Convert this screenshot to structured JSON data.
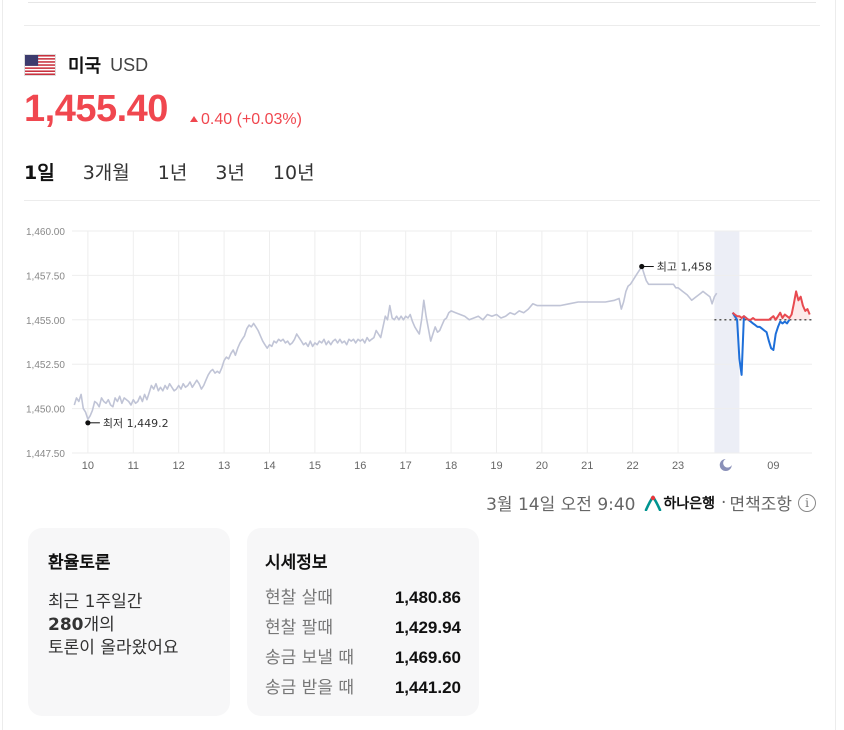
{
  "currency": {
    "country": "미국",
    "code": "USD",
    "rate": "1,455.40",
    "change": "0.40 (+0.03%)"
  },
  "tabs": [
    {
      "label": "1일",
      "active": true
    },
    {
      "label": "3개월",
      "active": false
    },
    {
      "label": "1년",
      "active": false
    },
    {
      "label": "3년",
      "active": false
    },
    {
      "label": "10년",
      "active": false
    }
  ],
  "chart_data": {
    "type": "line",
    "y_ticks": [
      "1,460.00",
      "1,457.50",
      "1,455.00",
      "1,452.50",
      "1,450.00",
      "1,447.50"
    ],
    "x_ticks": [
      "10",
      "11",
      "12",
      "13",
      "14",
      "15",
      "16",
      "17",
      "18",
      "19",
      "20",
      "21",
      "22",
      "23",
      "09"
    ],
    "ylim": [
      1447.5,
      1460.0
    ],
    "night_icon": "moon-icon",
    "reference_line": 1455.0,
    "high_label": "최고 1,458",
    "low_label": "최저 1,449.2",
    "series": [
      {
        "color": "#c0c4d6",
        "points": [
          [
            9.7,
            1450.2
          ],
          [
            9.75,
            1450.6
          ],
          [
            9.8,
            1450.4
          ],
          [
            9.85,
            1450.8
          ],
          [
            9.9,
            1450.0
          ],
          [
            9.95,
            1449.8
          ],
          [
            10.0,
            1449.4
          ],
          [
            10.05,
            1449.6
          ],
          [
            10.1,
            1449.9
          ],
          [
            10.15,
            1450.4
          ],
          [
            10.2,
            1450.3
          ],
          [
            10.25,
            1450.1
          ],
          [
            10.3,
            1450.6
          ],
          [
            10.35,
            1450.4
          ],
          [
            10.4,
            1450.3
          ],
          [
            10.45,
            1450.5
          ],
          [
            10.5,
            1450.2
          ],
          [
            10.55,
            1450.1
          ],
          [
            10.6,
            1450.6
          ],
          [
            10.65,
            1450.4
          ],
          [
            10.7,
            1450.7
          ],
          [
            10.75,
            1450.3
          ],
          [
            10.8,
            1450.6
          ],
          [
            10.85,
            1450.5
          ],
          [
            10.9,
            1450.4
          ],
          [
            10.95,
            1450.2
          ],
          [
            11.0,
            1450.5
          ],
          [
            11.05,
            1450.3
          ],
          [
            11.1,
            1450.4
          ],
          [
            11.15,
            1450.7
          ],
          [
            11.2,
            1450.4
          ],
          [
            11.25,
            1450.8
          ],
          [
            11.3,
            1450.5
          ],
          [
            11.35,
            1450.9
          ],
          [
            11.4,
            1451.3
          ],
          [
            11.45,
            1451.1
          ],
          [
            11.5,
            1451.4
          ],
          [
            11.55,
            1451.0
          ],
          [
            11.6,
            1451.2
          ],
          [
            11.65,
            1451.0
          ],
          [
            11.7,
            1451.3
          ],
          [
            11.75,
            1451.1
          ],
          [
            11.8,
            1451.4
          ],
          [
            11.85,
            1451.2
          ],
          [
            11.9,
            1451.0
          ],
          [
            11.95,
            1451.1
          ],
          [
            12.0,
            1451.3
          ],
          [
            12.05,
            1451.1
          ],
          [
            12.1,
            1451.4
          ],
          [
            12.15,
            1451.2
          ],
          [
            12.2,
            1451.3
          ],
          [
            12.25,
            1451.5
          ],
          [
            12.3,
            1451.2
          ],
          [
            12.35,
            1451.4
          ],
          [
            12.4,
            1451.6
          ],
          [
            12.45,
            1451.4
          ],
          [
            12.5,
            1451.1
          ],
          [
            12.55,
            1451.3
          ],
          [
            12.6,
            1451.6
          ],
          [
            12.65,
            1451.9
          ],
          [
            12.7,
            1452.1
          ],
          [
            12.75,
            1452.2
          ],
          [
            12.8,
            1452.0
          ],
          [
            12.85,
            1452.1
          ],
          [
            12.9,
            1452.0
          ],
          [
            12.95,
            1452.3
          ],
          [
            13.0,
            1452.7
          ],
          [
            13.05,
            1452.9
          ],
          [
            13.1,
            1452.8
          ],
          [
            13.15,
            1453.1
          ],
          [
            13.2,
            1453.3
          ],
          [
            13.25,
            1453.0
          ],
          [
            13.3,
            1453.4
          ],
          [
            13.35,
            1453.7
          ],
          [
            13.4,
            1453.9
          ],
          [
            13.45,
            1454.1
          ],
          [
            13.5,
            1454.5
          ],
          [
            13.55,
            1454.7
          ],
          [
            13.6,
            1454.6
          ],
          [
            13.65,
            1454.8
          ],
          [
            13.7,
            1454.6
          ],
          [
            13.75,
            1454.4
          ],
          [
            13.8,
            1454.1
          ],
          [
            13.85,
            1453.8
          ],
          [
            13.9,
            1453.6
          ],
          [
            13.95,
            1453.4
          ],
          [
            14.0,
            1453.6
          ],
          [
            14.05,
            1453.5
          ],
          [
            14.1,
            1453.8
          ],
          [
            14.15,
            1453.7
          ],
          [
            14.2,
            1453.9
          ],
          [
            14.25,
            1453.8
          ],
          [
            14.3,
            1453.9
          ],
          [
            14.35,
            1453.7
          ],
          [
            14.4,
            1453.8
          ],
          [
            14.45,
            1453.6
          ],
          [
            14.5,
            1453.7
          ],
          [
            14.55,
            1453.9
          ],
          [
            14.6,
            1454.2
          ],
          [
            14.65,
            1454.0
          ],
          [
            14.7,
            1453.8
          ],
          [
            14.75,
            1453.6
          ],
          [
            14.8,
            1453.7
          ],
          [
            14.85,
            1453.5
          ],
          [
            14.9,
            1453.8
          ],
          [
            14.95,
            1453.5
          ],
          [
            15.0,
            1453.7
          ],
          [
            15.05,
            1453.6
          ],
          [
            15.1,
            1453.8
          ],
          [
            15.15,
            1453.7
          ],
          [
            15.2,
            1453.9
          ],
          [
            15.25,
            1453.6
          ],
          [
            15.3,
            1453.8
          ],
          [
            15.35,
            1453.6
          ],
          [
            15.4,
            1453.8
          ],
          [
            15.45,
            1453.9
          ],
          [
            15.5,
            1453.7
          ],
          [
            15.55,
            1453.9
          ],
          [
            15.6,
            1453.7
          ],
          [
            15.65,
            1453.8
          ],
          [
            15.7,
            1453.6
          ],
          [
            15.75,
            1453.9
          ],
          [
            15.8,
            1453.8
          ],
          [
            15.85,
            1453.9
          ],
          [
            15.9,
            1453.7
          ],
          [
            15.95,
            1453.9
          ],
          [
            16.0,
            1453.8
          ],
          [
            16.05,
            1453.9
          ],
          [
            16.1,
            1453.7
          ],
          [
            16.15,
            1454.0
          ],
          [
            16.2,
            1453.8
          ],
          [
            16.25,
            1453.9
          ],
          [
            16.3,
            1454.0
          ],
          [
            16.35,
            1454.4
          ],
          [
            16.4,
            1454.2
          ],
          [
            16.45,
            1454.0
          ],
          [
            16.5,
            1454.6
          ],
          [
            16.55,
            1455.2
          ],
          [
            16.6,
            1455.0
          ],
          [
            16.65,
            1455.8
          ],
          [
            16.7,
            1455.1
          ],
          [
            16.75,
            1455.0
          ],
          [
            16.8,
            1455.2
          ],
          [
            16.85,
            1455.0
          ],
          [
            16.9,
            1455.2
          ],
          [
            16.95,
            1455.0
          ],
          [
            17.0,
            1455.2
          ],
          [
            17.05,
            1455.1
          ],
          [
            17.1,
            1455.3
          ],
          [
            17.15,
            1454.9
          ],
          [
            17.2,
            1454.6
          ],
          [
            17.25,
            1454.4
          ],
          [
            17.3,
            1454.2
          ],
          [
            17.35,
            1455.0
          ],
          [
            17.4,
            1456.1
          ],
          [
            17.45,
            1455.2
          ],
          [
            17.5,
            1454.5
          ],
          [
            17.55,
            1453.8
          ],
          [
            17.6,
            1454.2
          ],
          [
            17.65,
            1454.6
          ],
          [
            17.7,
            1454.3
          ],
          [
            17.75,
            1454.4
          ],
          [
            17.8,
            1454.7
          ],
          [
            17.85,
            1455.0
          ],
          [
            17.9,
            1455.1
          ],
          [
            17.95,
            1455.4
          ],
          [
            18.0,
            1455.5
          ],
          [
            18.1,
            1455.4
          ],
          [
            18.2,
            1455.3
          ],
          [
            18.3,
            1455.2
          ],
          [
            18.4,
            1455.0
          ],
          [
            18.5,
            1455.1
          ],
          [
            18.6,
            1455.2
          ],
          [
            18.7,
            1455.0
          ],
          [
            18.8,
            1455.3
          ],
          [
            18.9,
            1455.2
          ],
          [
            19.0,
            1455.3
          ],
          [
            19.1,
            1455.1
          ],
          [
            19.2,
            1455.2
          ],
          [
            19.3,
            1455.4
          ],
          [
            19.4,
            1455.3
          ],
          [
            19.5,
            1455.5
          ],
          [
            19.6,
            1455.4
          ],
          [
            19.7,
            1455.6
          ],
          [
            19.8,
            1455.9
          ],
          [
            19.9,
            1455.8
          ],
          [
            20.0,
            1455.8
          ],
          [
            20.2,
            1455.8
          ],
          [
            20.4,
            1455.8
          ],
          [
            20.6,
            1455.9
          ],
          [
            20.8,
            1456.0
          ],
          [
            21.0,
            1456.0
          ],
          [
            21.2,
            1456.0
          ],
          [
            21.4,
            1456.0
          ],
          [
            21.6,
            1456.1
          ],
          [
            21.7,
            1456.2
          ],
          [
            21.75,
            1455.6
          ],
          [
            21.8,
            1456.0
          ],
          [
            21.85,
            1456.6
          ],
          [
            21.9,
            1456.9
          ],
          [
            21.95,
            1457.0
          ],
          [
            22.0,
            1457.2
          ],
          [
            22.05,
            1457.4
          ],
          [
            22.1,
            1457.6
          ],
          [
            22.15,
            1457.8
          ],
          [
            22.2,
            1458.0
          ],
          [
            22.25,
            1457.6
          ],
          [
            22.3,
            1457.2
          ],
          [
            22.35,
            1457.0
          ],
          [
            22.5,
            1457.0
          ],
          [
            22.6,
            1457.0
          ],
          [
            22.75,
            1457.0
          ],
          [
            22.9,
            1457.0
          ],
          [
            22.95,
            1456.8
          ],
          [
            23.0,
            1456.8
          ],
          [
            23.1,
            1456.6
          ],
          [
            23.2,
            1456.4
          ],
          [
            23.3,
            1456.1
          ],
          [
            23.4,
            1456.3
          ],
          [
            23.5,
            1456.5
          ],
          [
            23.55,
            1456.6
          ],
          [
            23.6,
            1456.5
          ],
          [
            23.7,
            1456.3
          ],
          [
            23.75,
            1455.9
          ],
          [
            23.8,
            1456.3
          ],
          [
            23.85,
            1456.5
          ]
        ]
      },
      {
        "color": "#1e6fd9",
        "points": [
          [
            24.2,
            1455.4
          ],
          [
            24.25,
            1455.2
          ],
          [
            24.3,
            1455.0
          ],
          [
            24.35,
            1452.8
          ],
          [
            24.4,
            1451.9
          ],
          [
            24.45,
            1455.2
          ],
          [
            24.5,
            1455.1
          ],
          [
            24.55,
            1455.0
          ],
          [
            24.6,
            1454.9
          ],
          [
            24.65,
            1454.8
          ],
          [
            24.7,
            1454.7
          ],
          [
            24.75,
            1454.6
          ],
          [
            24.8,
            1454.6
          ],
          [
            24.85,
            1454.5
          ],
          [
            24.9,
            1454.4
          ],
          [
            24.95,
            1454.3
          ],
          [
            25.0,
            1453.8
          ],
          [
            25.05,
            1453.4
          ],
          [
            25.1,
            1453.3
          ],
          [
            25.15,
            1454.2
          ],
          [
            25.2,
            1454.6
          ],
          [
            25.25,
            1454.9
          ],
          [
            25.3,
            1454.8
          ],
          [
            25.35,
            1454.9
          ],
          [
            25.4,
            1454.8
          ],
          [
            25.45,
            1455.0
          ]
        ]
      },
      {
        "color": "#e84a50",
        "points": [
          [
            24.2,
            1455.4
          ],
          [
            24.25,
            1455.3
          ],
          [
            24.3,
            1455.2
          ],
          [
            24.35,
            1455.2
          ],
          [
            24.4,
            1455.1
          ],
          [
            24.45,
            1455.2
          ],
          [
            24.5,
            1455.1
          ],
          [
            24.55,
            1455.0
          ],
          [
            24.6,
            1455.0
          ],
          [
            24.65,
            1455.1
          ],
          [
            24.7,
            1455.0
          ],
          [
            25.0,
            1455.0
          ],
          [
            25.05,
            1455.1
          ],
          [
            25.1,
            1455.2
          ],
          [
            25.15,
            1455.0
          ],
          [
            25.2,
            1455.2
          ],
          [
            25.25,
            1455.4
          ],
          [
            25.3,
            1455.1
          ],
          [
            25.35,
            1455.3
          ],
          [
            25.4,
            1455.2
          ],
          [
            25.45,
            1455.1
          ],
          [
            25.5,
            1455.3
          ],
          [
            25.55,
            1455.9
          ],
          [
            25.6,
            1456.6
          ],
          [
            25.65,
            1456.1
          ],
          [
            25.7,
            1456.3
          ],
          [
            25.75,
            1455.8
          ],
          [
            25.8,
            1455.5
          ],
          [
            25.85,
            1455.6
          ],
          [
            25.9,
            1455.3
          ]
        ]
      }
    ]
  },
  "source": {
    "date": "3월 14일 오전 9:40",
    "bank": "하나은행",
    "note": "면책조항",
    "info_icon": "info-icon"
  },
  "discussion": {
    "title": "환율토론",
    "line1": "최근 1주일간",
    "count": "280",
    "line2_suffix": "개의",
    "line3": "토론이 올라왔어요"
  },
  "market": {
    "title": "시세정보",
    "rows": [
      {
        "label": "현찰 살때",
        "value": "1,480.86"
      },
      {
        "label": "현찰 팔때",
        "value": "1,429.94"
      },
      {
        "label": "송금 보낼 때",
        "value": "1,469.60"
      },
      {
        "label": "송금 받을 때",
        "value": "1,441.20"
      }
    ]
  }
}
